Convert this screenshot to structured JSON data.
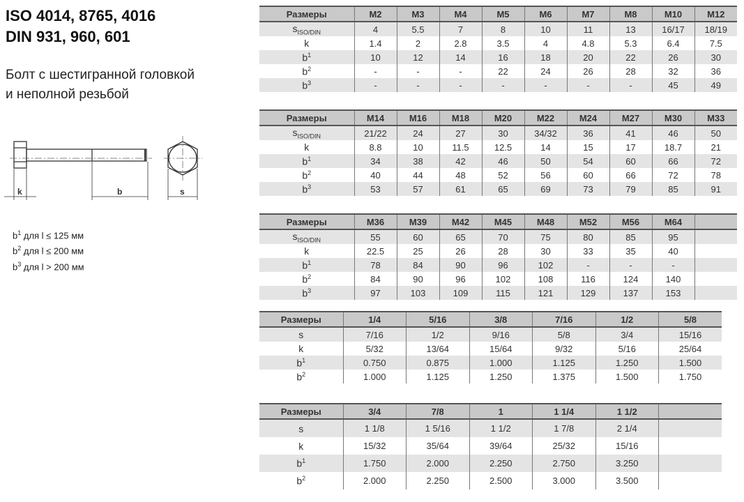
{
  "title_lines": [
    "ISO 4014, 8765, 4016",
    "DIN 931, 960, 601"
  ],
  "subtitle_lines": [
    "Болт с шестигранной головкой",
    "и неполной резьбой"
  ],
  "drawing_labels": {
    "k": "k",
    "b": "b",
    "s": "s"
  },
  "notes": [
    {
      "base": "b",
      "sup": "1",
      "text": " для l ≤ 125 мм"
    },
    {
      "base": "b",
      "sup": "2",
      "text": " для l ≤ 200 мм"
    },
    {
      "base": "b",
      "sup": "3",
      "text": " для l > 200 мм"
    }
  ],
  "tables": [
    {
      "header": "Размеры",
      "columns": [
        "M2",
        "M3",
        "M4",
        "M5",
        "M6",
        "M7",
        "M8",
        "M10",
        "M12"
      ],
      "rows": [
        {
          "label": "s",
          "sub": "ISO/DIN",
          "values": [
            "4",
            "5.5",
            "7",
            "8",
            "10",
            "11",
            "13",
            "16/17",
            "18/19"
          ]
        },
        {
          "label": "k",
          "values": [
            "1.4",
            "2",
            "2.8",
            "3.5",
            "4",
            "4.8",
            "5.3",
            "6.4",
            "7.5"
          ]
        },
        {
          "label": "b",
          "sup": "1",
          "values": [
            "10",
            "12",
            "14",
            "16",
            "18",
            "20",
            "22",
            "26",
            "30"
          ]
        },
        {
          "label": "b",
          "sup": "2",
          "values": [
            "-",
            "-",
            "-",
            "22",
            "24",
            "26",
            "28",
            "32",
            "36"
          ]
        },
        {
          "label": "b",
          "sup": "3",
          "values": [
            "-",
            "-",
            "-",
            "-",
            "-",
            "-",
            "-",
            "45",
            "49"
          ]
        }
      ]
    },
    {
      "header": "Размеры",
      "columns": [
        "M14",
        "M16",
        "M18",
        "M20",
        "M22",
        "M24",
        "M27",
        "M30",
        "M33"
      ],
      "rows": [
        {
          "label": "s",
          "sub": "ISO/DIN",
          "values": [
            "21/22",
            "24",
            "27",
            "30",
            "34/32",
            "36",
            "41",
            "46",
            "50"
          ]
        },
        {
          "label": "k",
          "values": [
            "8.8",
            "10",
            "11.5",
            "12.5",
            "14",
            "15",
            "17",
            "18.7",
            "21"
          ]
        },
        {
          "label": "b",
          "sup": "1",
          "values": [
            "34",
            "38",
            "42",
            "46",
            "50",
            "54",
            "60",
            "66",
            "72"
          ]
        },
        {
          "label": "b",
          "sup": "2",
          "values": [
            "40",
            "44",
            "48",
            "52",
            "56",
            "60",
            "66",
            "72",
            "78"
          ]
        },
        {
          "label": "b",
          "sup": "3",
          "values": [
            "53",
            "57",
            "61",
            "65",
            "69",
            "73",
            "79",
            "85",
            "91"
          ]
        }
      ]
    },
    {
      "header": "Размеры",
      "columns": [
        "M36",
        "M39",
        "M42",
        "M45",
        "M48",
        "M52",
        "M56",
        "M64",
        ""
      ],
      "rows": [
        {
          "label": "s",
          "sub": "ISO/DIN",
          "values": [
            "55",
            "60",
            "65",
            "70",
            "75",
            "80",
            "85",
            "95",
            ""
          ]
        },
        {
          "label": "k",
          "values": [
            "22.5",
            "25",
            "26",
            "28",
            "30",
            "33",
            "35",
            "40",
            ""
          ]
        },
        {
          "label": "b",
          "sup": "1",
          "values": [
            "78",
            "84",
            "90",
            "96",
            "102",
            "-",
            "-",
            "-",
            ""
          ]
        },
        {
          "label": "b",
          "sup": "2",
          "values": [
            "84",
            "90",
            "96",
            "102",
            "108",
            "116",
            "124",
            "140",
            ""
          ]
        },
        {
          "label": "b",
          "sup": "3",
          "values": [
            "97",
            "103",
            "109",
            "115",
            "121",
            "129",
            "137",
            "153",
            ""
          ]
        }
      ]
    },
    {
      "header": "Размеры",
      "columns": [
        "1/4",
        "5/16",
        "3/8",
        "7/16",
        "1/2",
        "5/8"
      ],
      "rows": [
        {
          "label": "s",
          "values": [
            "7/16",
            "1/2",
            "9/16",
            "5/8",
            "3/4",
            "15/16"
          ]
        },
        {
          "label": "k",
          "values": [
            "5/32",
            "13/64",
            "15/64",
            "9/32",
            "5/16",
            "25/64"
          ]
        },
        {
          "label": "b",
          "sup": "1",
          "values": [
            "0.750",
            "0.875",
            "1.000",
            "1.125",
            "1.250",
            "1.500"
          ]
        },
        {
          "label": "b",
          "sup": "2",
          "values": [
            "1.000",
            "1.125",
            "1.250",
            "1.375",
            "1.500",
            "1.750"
          ]
        }
      ]
    },
    {
      "header": "Размеры",
      "columns": [
        "3/4",
        "7/8",
        "1",
        "1 1/4",
        "1 1/2",
        ""
      ],
      "rows": [
        {
          "label": "s",
          "values": [
            "1 1/8",
            "1 5/16",
            "1 1/2",
            "1 7/8",
            "2 1/4",
            ""
          ]
        },
        {
          "label": "k",
          "values": [
            "15/32",
            "35/64",
            "39/64",
            "25/32",
            "15/16",
            ""
          ]
        },
        {
          "label": "b",
          "sup": "1",
          "values": [
            "1.750",
            "2.000",
            "2.250",
            "2.750",
            "3.250",
            ""
          ]
        },
        {
          "label": "b",
          "sup": "2",
          "values": [
            "2.000",
            "2.250",
            "2.500",
            "3.000",
            "3.500",
            ""
          ]
        }
      ]
    }
  ]
}
